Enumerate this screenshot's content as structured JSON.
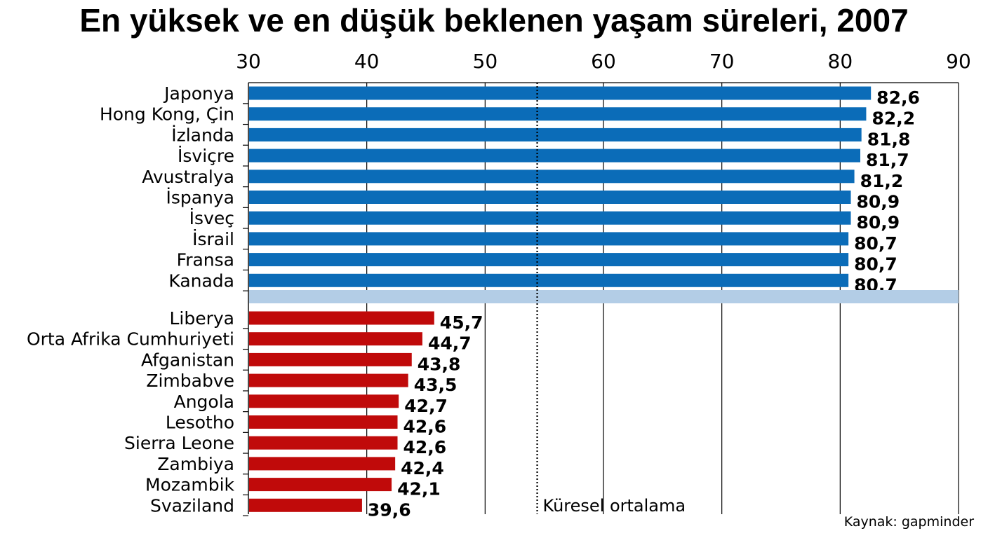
{
  "chart_data": {
    "type": "bar",
    "orientation": "horizontal",
    "title": "En yüksek ve en düşük beklenen yaşam süreleri, 2007",
    "xlim": [
      30,
      90
    ],
    "xticks": [
      30,
      40,
      50,
      60,
      70,
      80,
      90
    ],
    "xlabel": "",
    "ylabel": "",
    "grid": true,
    "average_label": "Küresel ortalama",
    "average_value": 54.4,
    "source": "Kaynak: gapminder",
    "highest": {
      "color": "#0b6cb8",
      "categories": [
        "Japonya",
        "Hong Kong, Çin",
        "İzlanda",
        "İsviçre",
        "Avustralya",
        "İspanya",
        "İsveç",
        "İsrail",
        "Fransa",
        "Kanada"
      ],
      "values": [
        82.6,
        82.2,
        81.8,
        81.7,
        81.2,
        80.9,
        80.9,
        80.7,
        80.7,
        80.7
      ],
      "value_labels": [
        "82,6",
        "82,2",
        "81,8",
        "81,7",
        "81,2",
        "80,9",
        "80,9",
        "80,7",
        "80,7",
        "80,7"
      ]
    },
    "lowest": {
      "color": "#c00a0a",
      "categories": [
        "Liberya",
        "Orta Afrika Cumhuriyeti",
        "Afganistan",
        "Zimbabve",
        "Angola",
        "Lesotho",
        "Sierra Leone",
        "Zambiya",
        "Mozambik",
        "Svaziland"
      ],
      "values": [
        45.7,
        44.7,
        43.8,
        43.5,
        42.7,
        42.6,
        42.6,
        42.4,
        42.1,
        39.6
      ],
      "value_labels": [
        "45,7",
        "44,7",
        "43,8",
        "43,5",
        "42,7",
        "42,6",
        "42,6",
        "42,4",
        "42,1",
        "39,6"
      ]
    },
    "separator_color": "#b3cde6"
  }
}
